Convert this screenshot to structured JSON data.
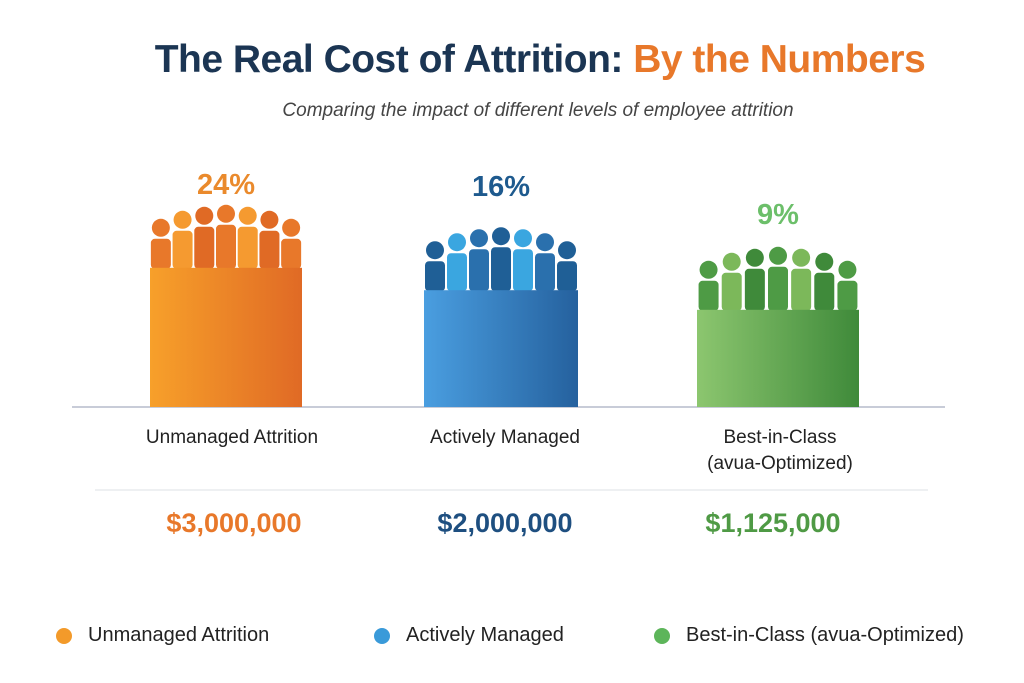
{
  "title": {
    "main": "The Real Cost of Attrition: ",
    "highlight": "By the Numbers"
  },
  "subtitle": "Comparing the impact of different levels of employee attrition",
  "chart_data": {
    "type": "bar",
    "categories": [
      "Unmanaged Attrition",
      "Actively Managed",
      "Best-in-Class (avua-Optimized)"
    ],
    "category_lines": [
      [
        "Unmanaged Attrition"
      ],
      [
        "Actively Managed"
      ],
      [
        "Best-in-Class",
        "(avua-Optimized)"
      ]
    ],
    "values": [
      24,
      16,
      9
    ],
    "value_labels": [
      "24%",
      "16%",
      "9%"
    ],
    "costs": [
      "$3,000,000",
      "$2,000,000",
      "$1,125,000"
    ],
    "colors": [
      "#e8782a",
      "#2f73b5",
      "#4f9a45"
    ],
    "label_colors": [
      "#ea8a2c",
      "#1e5a8e",
      "#6cbf6a"
    ],
    "legend": [
      "Unmanaged Attrition",
      "Actively Managed",
      "Best-in-Class (avua-Optimized)"
    ],
    "legend_colors": [
      "#f39a2a",
      "#3a9ad9",
      "#5db55a"
    ],
    "legend_position": "bottom",
    "grid": false
  }
}
